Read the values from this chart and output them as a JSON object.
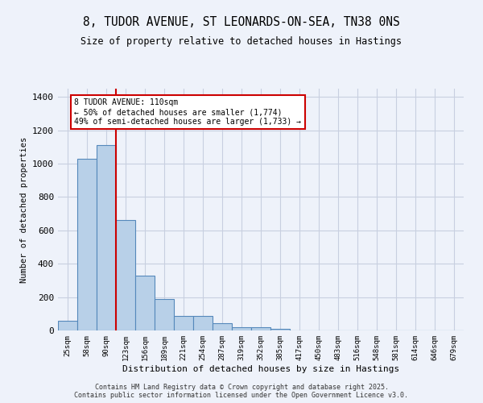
{
  "title": "8, TUDOR AVENUE, ST LEONARDS-ON-SEA, TN38 0NS",
  "subtitle": "Size of property relative to detached houses in Hastings",
  "xlabel": "Distribution of detached houses by size in Hastings",
  "ylabel": "Number of detached properties",
  "categories": [
    "25sqm",
    "58sqm",
    "90sqm",
    "123sqm",
    "156sqm",
    "189sqm",
    "221sqm",
    "254sqm",
    "287sqm",
    "319sqm",
    "352sqm",
    "385sqm",
    "417sqm",
    "450sqm",
    "483sqm",
    "516sqm",
    "548sqm",
    "581sqm",
    "614sqm",
    "646sqm",
    "679sqm"
  ],
  "values": [
    60,
    1030,
    1110,
    660,
    330,
    190,
    85,
    85,
    45,
    20,
    17,
    10,
    0,
    0,
    0,
    0,
    0,
    0,
    0,
    0,
    0
  ],
  "bar_color": "#b8d0e8",
  "bar_edge_color": "#5588bb",
  "vline_color": "#cc0000",
  "annotation_text": "8 TUDOR AVENUE: 110sqm\n← 50% of detached houses are smaller (1,774)\n49% of semi-detached houses are larger (1,733) →",
  "annotation_box_color": "white",
  "annotation_box_edge_color": "#cc0000",
  "ylim": [
    0,
    1450
  ],
  "yticks": [
    0,
    200,
    400,
    600,
    800,
    1000,
    1200,
    1400
  ],
  "bg_color": "#eef2fa",
  "grid_color": "#c8cfe0",
  "footer": "Contains HM Land Registry data © Crown copyright and database right 2025.\nContains public sector information licensed under the Open Government Licence v3.0."
}
